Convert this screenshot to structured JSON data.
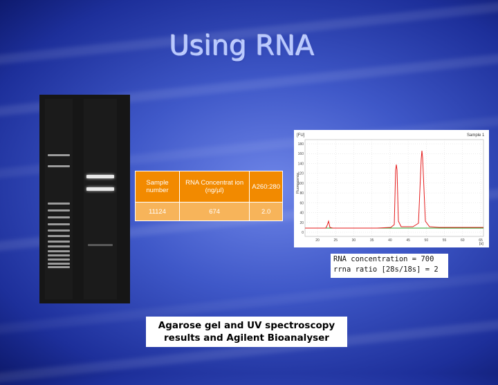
{
  "title": "Using RNA",
  "table": {
    "headers": [
      "Sample number",
      "RNA Concentrat ion (ng/µl)",
      "A260:280"
    ],
    "row": [
      "11124",
      "674",
      "2.0"
    ]
  },
  "bioanalyzer": {
    "y_unit": "[FU]",
    "y_axis_title": "Fluorescence",
    "sample_label": "Sample 1",
    "x_unit": "[s]",
    "y_ticks": [
      "180",
      "160",
      "140",
      "120",
      "100",
      "80",
      "60",
      "40",
      "20",
      "0"
    ],
    "x_ticks": [
      "20",
      "25",
      "30",
      "35",
      "40",
      "45",
      "50",
      "55",
      "60",
      "65"
    ]
  },
  "caption": {
    "line1": "RNA concentration  = 700",
    "line2": "rrna ratio [28s/18s] = 2"
  },
  "bottom_caption": {
    "line1": "Agarose gel and UV spectroscopy",
    "line2": "results and Agilent Bioanalyser"
  },
  "colors": {
    "table_header": "#f28a00",
    "table_row": "#f7b45a",
    "trace": "#e41a1a",
    "baseline": "#2ca02c"
  }
}
